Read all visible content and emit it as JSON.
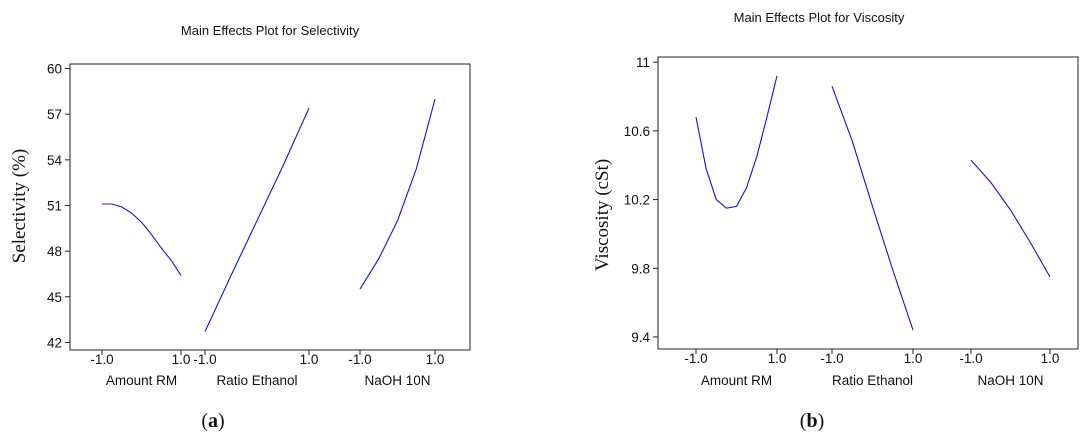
{
  "chart_data": [
    {
      "type": "line",
      "panel_label": "(a)",
      "panel_letter": "a",
      "title": "Main Effects Plot for Selectivity",
      "ylabel": "Selectivity (%)",
      "ylim": [
        41.5,
        60.3
      ],
      "yticks": [
        "42",
        "45",
        "48",
        "51",
        "54",
        "57",
        "60"
      ],
      "ytick_values": [
        42,
        45,
        48,
        51,
        54,
        57,
        60
      ],
      "factors": [
        {
          "name": "Amount RM",
          "x": [
            -1.0,
            -0.75,
            -0.5,
            -0.25,
            0.0,
            0.25,
            0.5,
            0.75,
            1.0
          ],
          "y": [
            51.1,
            51.1,
            50.9,
            50.5,
            49.9,
            49.1,
            48.2,
            47.4,
            46.4
          ]
        },
        {
          "name": "Ratio Ethanol",
          "x": [
            -1.0,
            -0.5,
            0.0,
            0.5,
            1.0
          ],
          "y": [
            42.7,
            46.4,
            50.0,
            53.6,
            57.4
          ]
        },
        {
          "name": "NaOH 10N",
          "x": [
            -1.0,
            -0.5,
            0.0,
            0.5,
            1.0
          ],
          "y": [
            45.5,
            47.5,
            50.0,
            53.4,
            58.0
          ]
        }
      ],
      "factor_ticks": [
        "-1.0",
        "1.0"
      ]
    },
    {
      "type": "line",
      "panel_label": "(b)",
      "panel_letter": "b",
      "title": "Main Effects Plot for Viscosity",
      "ylabel": "Viscosity (cSt)",
      "ylim": [
        9.33,
        11.03
      ],
      "yticks": [
        "9.4",
        "9.8",
        "10.2",
        "10.6",
        "11"
      ],
      "ytick_values": [
        9.4,
        9.8,
        10.2,
        10.6,
        11.0
      ],
      "factors": [
        {
          "name": "Amount RM",
          "x": [
            -1.0,
            -0.75,
            -0.5,
            -0.25,
            0.0,
            0.25,
            0.5,
            0.75,
            1.0
          ],
          "y": [
            10.68,
            10.38,
            10.2,
            10.15,
            10.16,
            10.27,
            10.45,
            10.68,
            10.92
          ]
        },
        {
          "name": "Ratio Ethanol",
          "x": [
            -1.0,
            -0.5,
            0.0,
            0.5,
            1.0
          ],
          "y": [
            10.86,
            10.54,
            10.16,
            9.79,
            9.44
          ]
        },
        {
          "name": "NaOH 10N",
          "x": [
            -1.0,
            -0.5,
            0.0,
            0.5,
            1.0
          ],
          "y": [
            10.43,
            10.3,
            10.14,
            9.95,
            9.75
          ]
        }
      ],
      "factor_ticks": [
        "-1.0",
        "1.0"
      ]
    }
  ],
  "colors": {
    "line": "#1010ee",
    "axis": "#222222",
    "text": "#111111"
  }
}
